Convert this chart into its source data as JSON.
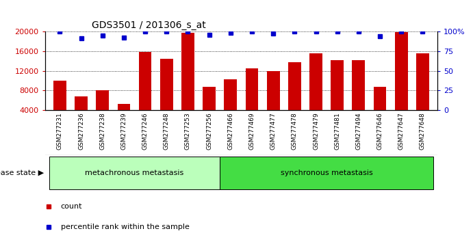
{
  "title": "GDS3501 / 201306_s_at",
  "categories": [
    "GSM277231",
    "GSM277236",
    "GSM277238",
    "GSM277239",
    "GSM277246",
    "GSM277248",
    "GSM277253",
    "GSM277256",
    "GSM277466",
    "GSM277469",
    "GSM277477",
    "GSM277478",
    "GSM277479",
    "GSM277481",
    "GSM277494",
    "GSM277646",
    "GSM277647",
    "GSM277648"
  ],
  "counts": [
    10000,
    6800,
    8100,
    5200,
    15900,
    14500,
    19700,
    8700,
    10300,
    12500,
    12000,
    13800,
    15600,
    14200,
    14200,
    8800,
    19800,
    15600
  ],
  "percentile_ranks": [
    100,
    91,
    95,
    92,
    100,
    100,
    100,
    96,
    98,
    100,
    97,
    100,
    100,
    100,
    100,
    94,
    100,
    100
  ],
  "ylim_left": [
    4000,
    20000
  ],
  "ylim_right": [
    0,
    100
  ],
  "yticks_left": [
    4000,
    8000,
    12000,
    16000,
    20000
  ],
  "yticks_right": [
    0,
    25,
    50,
    75,
    100
  ],
  "bar_color": "#cc0000",
  "dot_color": "#0000cc",
  "group1_label": "metachronous metastasis",
  "group2_label": "synchronous metastasis",
  "group1_count": 8,
  "group2_count": 10,
  "group1_color": "#bbffbb",
  "group2_color": "#44dd44",
  "disease_state_label": "disease state",
  "legend_count_label": "count",
  "legend_percentile_label": "percentile rank within the sample",
  "background_color": "#ffffff",
  "tick_label_area_color": "#cccccc",
  "bar_bottom": 4000
}
